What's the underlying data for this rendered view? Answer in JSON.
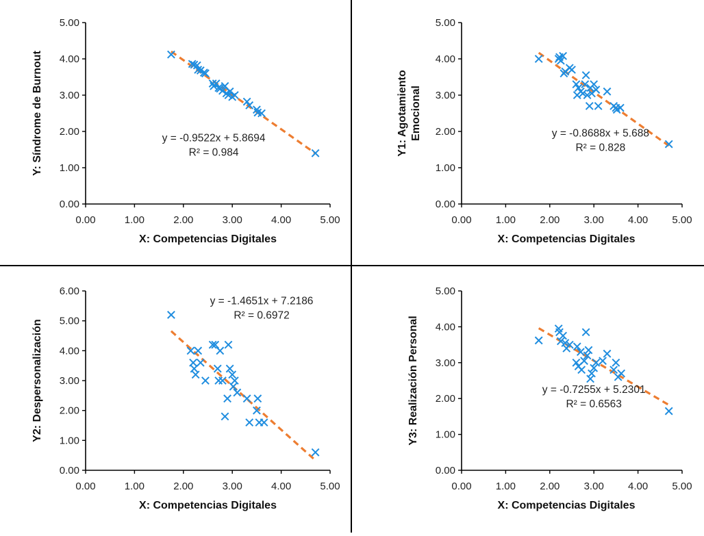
{
  "colors": {
    "marker": "#1f8ddf",
    "trend": "#ed7d31",
    "axis": "#000000",
    "border": "#000000"
  },
  "chart_data": [
    {
      "type": "scatter",
      "xlabel": "X: Competencias  Digitales",
      "ylabel": "Y: Síndrome de Burnout",
      "xlim": [
        0,
        5
      ],
      "ylim": [
        0,
        5
      ],
      "xticks": [
        "0.00",
        "1.00",
        "2.00",
        "3.00",
        "4.00",
        "5.00"
      ],
      "yticks": [
        "0.00",
        "1.00",
        "2.00",
        "3.00",
        "4.00",
        "5.00"
      ],
      "trendline": {
        "slope": -0.9522,
        "intercept": 5.8694,
        "x_range": [
          1.75,
          4.7
        ]
      },
      "equation": "y = -0.9522x + 5.8694",
      "r2": "R² = 0.984",
      "eq_pos": [
        2.62,
        1.73
      ],
      "points": [
        [
          1.75,
          4.12
        ],
        [
          2.18,
          3.86
        ],
        [
          2.22,
          3.84
        ],
        [
          2.28,
          3.82
        ],
        [
          2.3,
          3.7
        ],
        [
          2.35,
          3.68
        ],
        [
          2.42,
          3.62
        ],
        [
          2.45,
          3.6
        ],
        [
          2.6,
          3.32
        ],
        [
          2.62,
          3.25
        ],
        [
          2.67,
          3.32
        ],
        [
          2.72,
          3.2
        ],
        [
          2.75,
          3.18
        ],
        [
          2.8,
          3.12
        ],
        [
          2.85,
          3.25
        ],
        [
          2.88,
          3.05
        ],
        [
          2.92,
          3.0
        ],
        [
          2.95,
          3.1
        ],
        [
          3.0,
          2.95
        ],
        [
          3.05,
          3.0
        ],
        [
          3.3,
          2.82
        ],
        [
          3.35,
          2.72
        ],
        [
          3.5,
          2.6
        ],
        [
          3.52,
          2.52
        ],
        [
          3.6,
          2.5
        ],
        [
          4.7,
          1.4
        ]
      ]
    },
    {
      "type": "scatter",
      "xlabel": "X: Competencias  Digitales",
      "ylabel": [
        "Y1:  Agotamiento",
        "Emocional"
      ],
      "xlim": [
        0,
        5
      ],
      "ylim": [
        0,
        5
      ],
      "xticks": [
        "0.00",
        "1.00",
        "2.00",
        "3.00",
        "4.00",
        "5.00"
      ],
      "yticks": [
        "0.00",
        "1.00",
        "2.00",
        "3.00",
        "4.00",
        "5.00"
      ],
      "trendline": {
        "slope": -0.8688,
        "intercept": 5.688,
        "x_range": [
          1.75,
          4.7
        ]
      },
      "equation": "y = -0.8688x + 5.688",
      "r2": "R² = 0.828",
      "eq_pos": [
        3.15,
        1.86
      ],
      "points": [
        [
          1.75,
          4.0
        ],
        [
          2.2,
          4.0
        ],
        [
          2.22,
          4.05
        ],
        [
          2.25,
          3.95
        ],
        [
          2.3,
          4.08
        ],
        [
          2.32,
          3.6
        ],
        [
          2.35,
          3.65
        ],
        [
          2.45,
          3.75
        ],
        [
          2.5,
          3.7
        ],
        [
          2.6,
          3.3
        ],
        [
          2.62,
          3.0
        ],
        [
          2.65,
          3.2
        ],
        [
          2.7,
          3.1
        ],
        [
          2.75,
          3.05
        ],
        [
          2.8,
          3.3
        ],
        [
          2.82,
          3.55
        ],
        [
          2.85,
          3.0
        ],
        [
          2.9,
          2.7
        ],
        [
          2.92,
          3.2
        ],
        [
          2.95,
          3.05
        ],
        [
          3.0,
          3.3
        ],
        [
          3.05,
          3.15
        ],
        [
          3.1,
          2.7
        ],
        [
          3.3,
          3.1
        ],
        [
          3.45,
          2.7
        ],
        [
          3.5,
          2.65
        ],
        [
          3.52,
          2.6
        ],
        [
          3.6,
          2.65
        ],
        [
          4.7,
          1.65
        ]
      ]
    },
    {
      "type": "scatter",
      "xlabel": "X: Competencias  Digitales",
      "ylabel": "Y2:  Despersonalización",
      "xlim": [
        0,
        6
      ],
      "ylim": [
        0,
        6
      ],
      "xlim_display": [
        0,
        5
      ],
      "xticks": [
        "0.00",
        "1.00",
        "2.00",
        "3.00",
        "4.00",
        "5.00"
      ],
      "yticks": [
        "0.00",
        "1.00",
        "2.00",
        "3.00",
        "4.00",
        "5.00",
        "6.00"
      ],
      "trendline": {
        "slope": -1.4651,
        "intercept": 7.2186,
        "x_range": [
          1.75,
          4.7
        ]
      },
      "equation": "y = -1.4651x + 7.2186",
      "r2": "R² = 0.6972",
      "eq_pos": [
        3.6,
        5.55
      ],
      "points": [
        [
          1.75,
          5.2
        ],
        [
          2.15,
          4.0
        ],
        [
          2.2,
          3.6
        ],
        [
          2.22,
          3.4
        ],
        [
          2.25,
          3.2
        ],
        [
          2.3,
          4.0
        ],
        [
          2.35,
          3.6
        ],
        [
          2.45,
          3.0
        ],
        [
          2.6,
          4.2
        ],
        [
          2.65,
          4.2
        ],
        [
          2.7,
          3.4
        ],
        [
          2.72,
          3.0
        ],
        [
          2.75,
          4.0
        ],
        [
          2.8,
          3.0
        ],
        [
          2.85,
          1.8
        ],
        [
          2.9,
          2.4
        ],
        [
          2.92,
          4.2
        ],
        [
          2.95,
          3.4
        ],
        [
          3.0,
          3.2
        ],
        [
          3.02,
          2.8
        ],
        [
          3.05,
          3.0
        ],
        [
          3.1,
          2.6
        ],
        [
          3.3,
          2.4
        ],
        [
          3.35,
          1.6
        ],
        [
          3.5,
          2.0
        ],
        [
          3.52,
          2.4
        ],
        [
          3.55,
          1.6
        ],
        [
          3.65,
          1.6
        ],
        [
          4.7,
          0.6
        ]
      ]
    },
    {
      "type": "scatter",
      "xlabel": "X: Competencias  Digitales",
      "ylabel": "Y3:  Realización  Personal",
      "xlim": [
        0,
        5
      ],
      "ylim": [
        0,
        5
      ],
      "xticks": [
        "0.00",
        "1.00",
        "2.00",
        "3.00",
        "4.00",
        "5.00"
      ],
      "yticks": [
        "0.00",
        "1.00",
        "2.00",
        "3.00",
        "4.00",
        "5.00"
      ],
      "trendline": {
        "slope": -0.7255,
        "intercept": 5.2301,
        "x_range": [
          1.75,
          4.7
        ]
      },
      "equation": "y = -0.7255x + 5.2301",
      "r2": "R² = 0.6563",
      "eq_pos": [
        3.0,
        2.16
      ],
      "points": [
        [
          1.75,
          3.62
        ],
        [
          2.2,
          3.95
        ],
        [
          2.22,
          3.85
        ],
        [
          2.25,
          3.6
        ],
        [
          2.3,
          3.75
        ],
        [
          2.35,
          3.55
        ],
        [
          2.38,
          3.4
        ],
        [
          2.45,
          3.5
        ],
        [
          2.6,
          3.0
        ],
        [
          2.62,
          3.45
        ],
        [
          2.65,
          2.9
        ],
        [
          2.7,
          3.3
        ],
        [
          2.72,
          2.8
        ],
        [
          2.78,
          3.05
        ],
        [
          2.82,
          3.85
        ],
        [
          2.85,
          3.2
        ],
        [
          2.88,
          3.35
        ],
        [
          2.92,
          2.55
        ],
        [
          2.95,
          2.7
        ],
        [
          3.0,
          2.85
        ],
        [
          3.05,
          3.0
        ],
        [
          3.2,
          3.05
        ],
        [
          3.3,
          3.25
        ],
        [
          3.45,
          2.8
        ],
        [
          3.5,
          3.0
        ],
        [
          3.55,
          2.6
        ],
        [
          3.62,
          2.7
        ],
        [
          4.7,
          1.65
        ]
      ]
    }
  ]
}
